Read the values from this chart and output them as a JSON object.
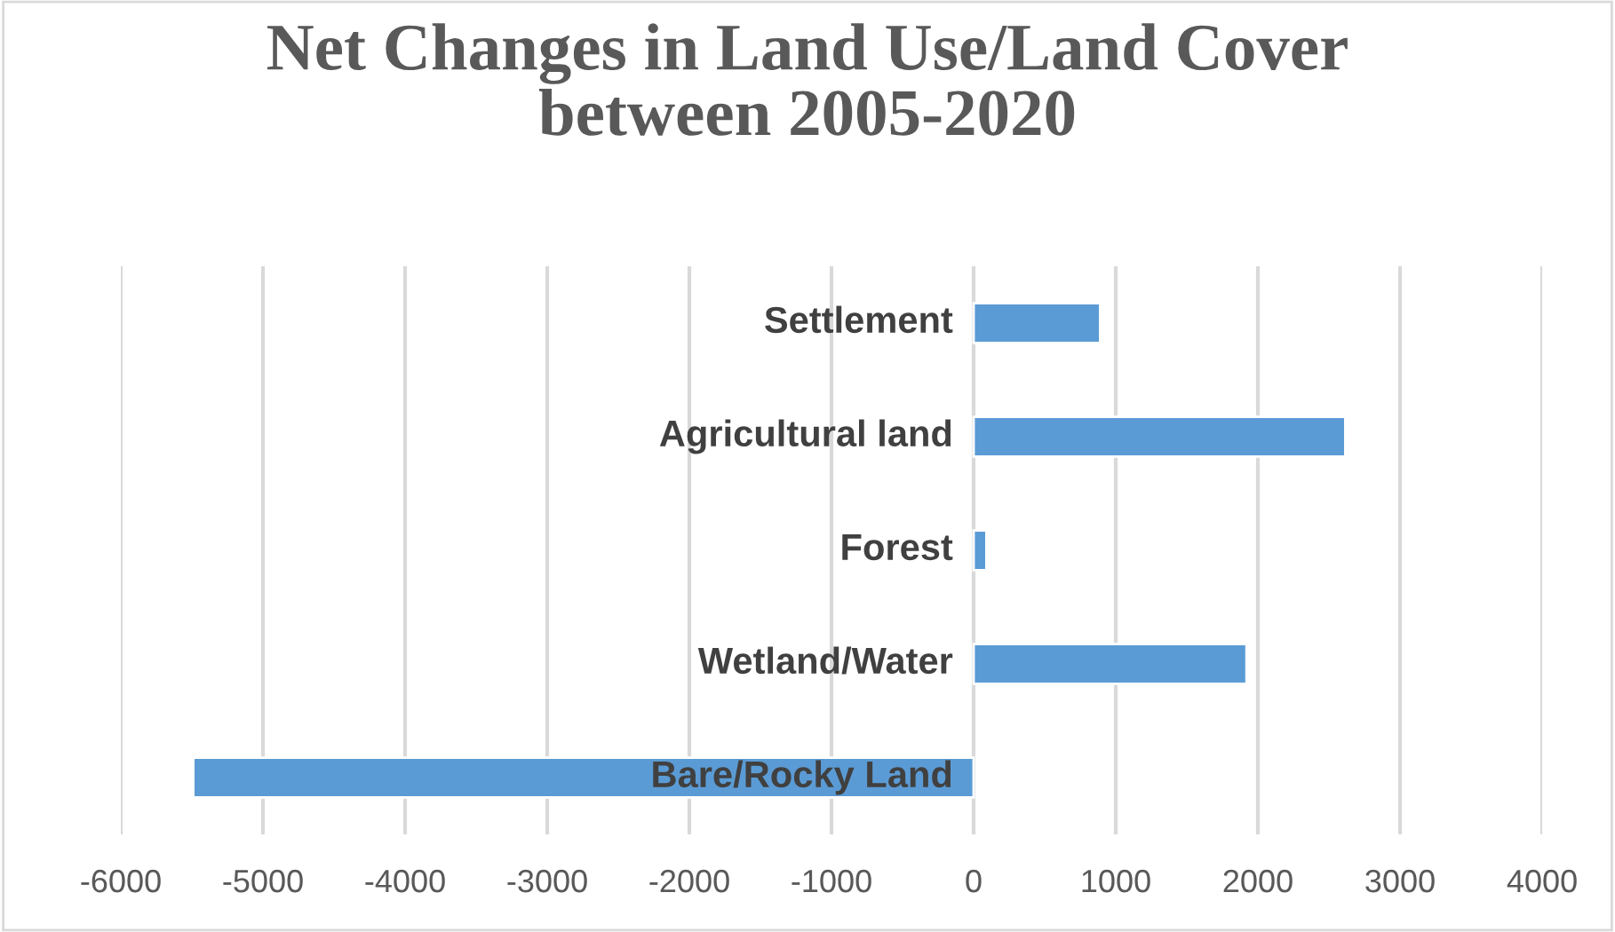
{
  "chart_data": {
    "type": "bar",
    "orientation": "horizontal",
    "title": "Net Changes in Land Use/Land Cover\nbetween 2005-2020",
    "categories": [
      "Settlement",
      "Agricultural land",
      "Forest",
      "Wetland/Water",
      "Bare/Rocky Land"
    ],
    "values": [
      890,
      2615,
      90,
      1920,
      -5490
    ],
    "color": "#5b9bd5",
    "xlim": [
      -6000,
      4000
    ],
    "xticks": [
      -6000,
      -5000,
      -4000,
      -3000,
      -2000,
      -1000,
      0,
      1000,
      2000,
      3000,
      4000
    ],
    "grid": "x",
    "legend": false
  }
}
